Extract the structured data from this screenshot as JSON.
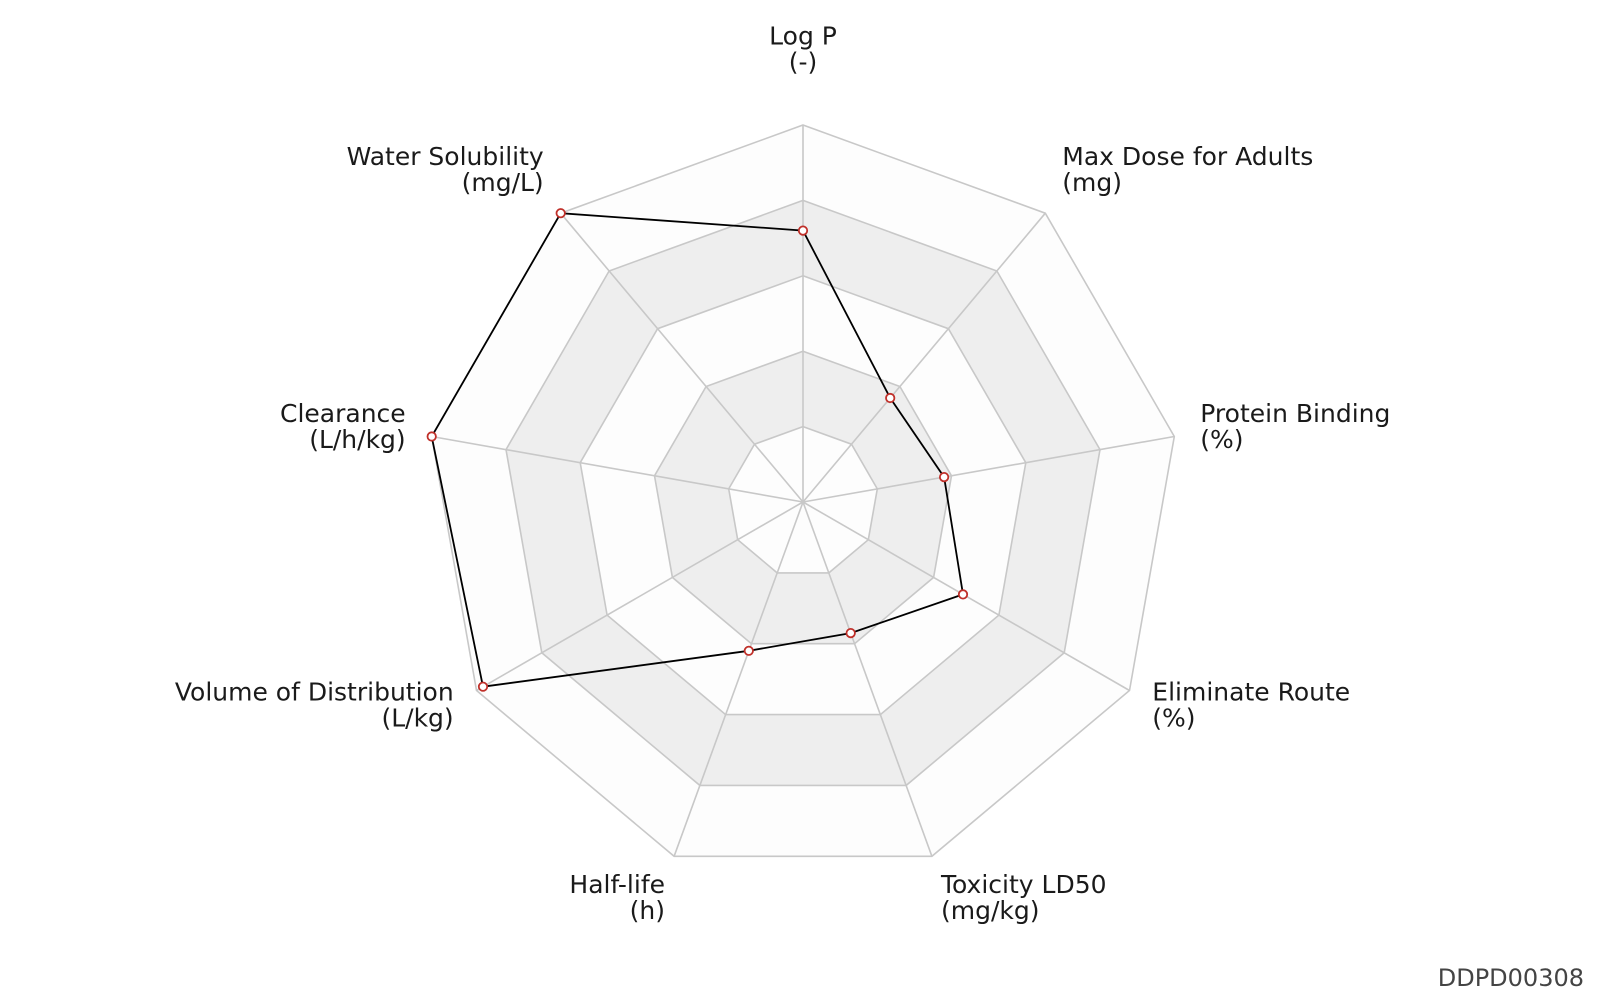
{
  "chart_data": {
    "type": "radar",
    "axes": [
      {
        "name": "Log P",
        "unit": "(-)"
      },
      {
        "name": "Max Dose for Adults",
        "unit": "(mg)"
      },
      {
        "name": "Protein Binding",
        "unit": "(%)"
      },
      {
        "name": "Eliminate Route",
        "unit": "(%)"
      },
      {
        "name": "Toxicity LD50",
        "unit": "(mg/kg)"
      },
      {
        "name": "Half-life",
        "unit": "(h)"
      },
      {
        "name": "Volume of Distribution",
        "unit": "(L/kg)"
      },
      {
        "name": "Clearance",
        "unit": "(L/h/kg)"
      },
      {
        "name": "Water Solubility",
        "unit": "(mg/L)"
      }
    ],
    "series": [
      {
        "values": [
          0.72,
          0.36,
          0.38,
          0.49,
          0.37,
          0.42,
          0.98,
          1.0,
          1.0
        ]
      }
    ],
    "range": [
      0,
      1
    ],
    "rings": 5,
    "legend": "none",
    "colors": {
      "line": "#000000",
      "marker_stroke": "#c0302a",
      "marker_fill": "#ffffff",
      "grid_line": "#c8c8c8",
      "band_fill": "#eeeeee",
      "band_fill_light": "#fdfdfd"
    }
  },
  "footer": {
    "id": "DDPD00308"
  }
}
